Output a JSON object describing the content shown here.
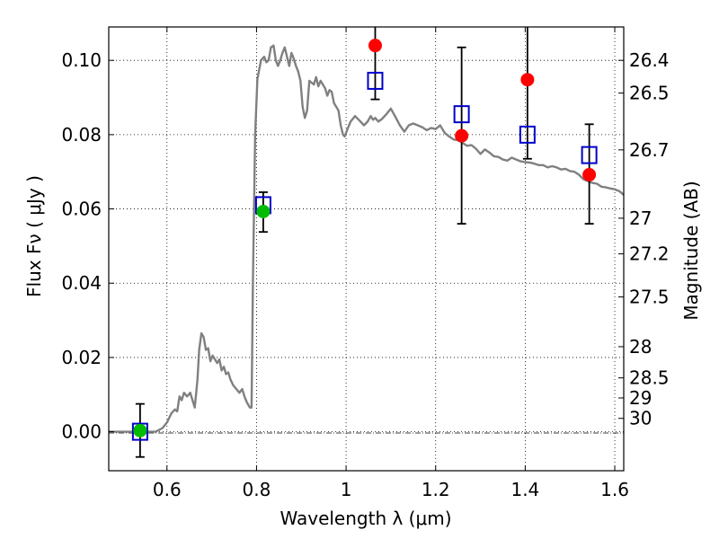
{
  "chart_data": {
    "type": "line",
    "xlabel": "Wavelength  λ (μm)",
    "ylabel": "Flux  Fν  ( μJy )",
    "y2label": "Magnitude (AB)",
    "xlim": [
      0.47,
      1.62
    ],
    "ylim": [
      -0.0105,
      0.109
    ],
    "grid": true,
    "x_ticks": [
      0.6,
      0.8,
      1.0,
      1.2,
      1.4,
      1.6
    ],
    "x_tick_labels": [
      "0.6",
      "0.8",
      "1",
      "1.2",
      "1.4",
      "1.6"
    ],
    "y_ticks": [
      0.0,
      0.02,
      0.04,
      0.06,
      0.08,
      0.1
    ],
    "y_tick_labels": [
      "0.00",
      "0.02",
      "0.04",
      "0.06",
      "0.08",
      "0.10"
    ],
    "mag_ticks": [
      {
        "label": "26.4",
        "flux": 0.1
      },
      {
        "label": "26.5",
        "flux": 0.0912
      },
      {
        "label": "26.7",
        "flux": 0.0759
      },
      {
        "label": "27",
        "flux": 0.0575
      },
      {
        "label": "27.2",
        "flux": 0.0479
      },
      {
        "label": "27.5",
        "flux": 0.0363
      },
      {
        "label": "28",
        "flux": 0.0229
      },
      {
        "label": "28.5",
        "flux": 0.0145
      },
      {
        "label": "29",
        "flux": 0.0091
      },
      {
        "label": "30",
        "flux": 0.0036
      }
    ],
    "series": [
      {
        "name": "model spectrum",
        "kind": "line",
        "color": "#808080",
        "points": [
          [
            0.47,
            0.0
          ],
          [
            0.575,
            0.0
          ],
          [
            0.59,
            0.001
          ],
          [
            0.6,
            0.0025
          ],
          [
            0.61,
            0.005
          ],
          [
            0.618,
            0.006
          ],
          [
            0.623,
            0.0055
          ],
          [
            0.628,
            0.0095
          ],
          [
            0.633,
            0.0085
          ],
          [
            0.638,
            0.0105
          ],
          [
            0.645,
            0.0095
          ],
          [
            0.652,
            0.0105
          ],
          [
            0.657,
            0.0085
          ],
          [
            0.662,
            0.0065
          ],
          [
            0.668,
            0.014
          ],
          [
            0.672,
            0.022
          ],
          [
            0.677,
            0.0265
          ],
          [
            0.682,
            0.0255
          ],
          [
            0.687,
            0.022
          ],
          [
            0.692,
            0.0225
          ],
          [
            0.697,
            0.019
          ],
          [
            0.702,
            0.0205
          ],
          [
            0.707,
            0.0195
          ],
          [
            0.712,
            0.0185
          ],
          [
            0.717,
            0.0195
          ],
          [
            0.722,
            0.0165
          ],
          [
            0.727,
            0.0175
          ],
          [
            0.732,
            0.0155
          ],
          [
            0.737,
            0.016
          ],
          [
            0.742,
            0.014
          ],
          [
            0.748,
            0.0125
          ],
          [
            0.755,
            0.0115
          ],
          [
            0.762,
            0.0105
          ],
          [
            0.768,
            0.0115
          ],
          [
            0.773,
            0.0095
          ],
          [
            0.778,
            0.008
          ],
          [
            0.785,
            0.0065
          ],
          [
            0.789,
            0.0065
          ],
          [
            0.792,
            0.04
          ],
          [
            0.797,
            0.08
          ],
          [
            0.802,
            0.095
          ],
          [
            0.81,
            0.1
          ],
          [
            0.817,
            0.101
          ],
          [
            0.822,
            0.0995
          ],
          [
            0.827,
            0.1
          ],
          [
            0.832,
            0.1035
          ],
          [
            0.838,
            0.104
          ],
          [
            0.843,
            0.1
          ],
          [
            0.848,
            0.0985
          ],
          [
            0.853,
            0.1
          ],
          [
            0.858,
            0.102
          ],
          [
            0.863,
            0.1035
          ],
          [
            0.868,
            0.101
          ],
          [
            0.873,
            0.0985
          ],
          [
            0.878,
            0.102
          ],
          [
            0.883,
            0.1005
          ],
          [
            0.888,
            0.0985
          ],
          [
            0.893,
            0.097
          ],
          [
            0.898,
            0.0945
          ],
          [
            0.903,
            0.0875
          ],
          [
            0.908,
            0.0845
          ],
          [
            0.913,
            0.0865
          ],
          [
            0.918,
            0.0945
          ],
          [
            0.923,
            0.094
          ],
          [
            0.928,
            0.0935
          ],
          [
            0.933,
            0.0955
          ],
          [
            0.938,
            0.093
          ],
          [
            0.943,
            0.0945
          ],
          [
            0.948,
            0.0935
          ],
          [
            0.953,
            0.0925
          ],
          [
            0.958,
            0.0905
          ],
          [
            0.963,
            0.092
          ],
          [
            0.968,
            0.0915
          ],
          [
            0.973,
            0.0885
          ],
          [
            0.978,
            0.0875
          ],
          [
            0.983,
            0.0865
          ],
          [
            0.988,
            0.0825
          ],
          [
            0.993,
            0.08
          ],
          [
            0.997,
            0.0795
          ],
          [
            1.003,
            0.0815
          ],
          [
            1.01,
            0.0835
          ],
          [
            1.02,
            0.085
          ],
          [
            1.03,
            0.0838
          ],
          [
            1.04,
            0.0825
          ],
          [
            1.048,
            0.0835
          ],
          [
            1.055,
            0.085
          ],
          [
            1.06,
            0.084
          ],
          [
            1.065,
            0.0845
          ],
          [
            1.072,
            0.0835
          ],
          [
            1.08,
            0.0842
          ],
          [
            1.09,
            0.0855
          ],
          [
            1.1,
            0.087
          ],
          [
            1.11,
            0.0848
          ],
          [
            1.12,
            0.0825
          ],
          [
            1.13,
            0.0808
          ],
          [
            1.14,
            0.0825
          ],
          [
            1.15,
            0.083
          ],
          [
            1.16,
            0.0825
          ],
          [
            1.17,
            0.082
          ],
          [
            1.18,
            0.0812
          ],
          [
            1.19,
            0.0818
          ],
          [
            1.2,
            0.0815
          ],
          [
            1.21,
            0.0825
          ],
          [
            1.22,
            0.0805
          ],
          [
            1.23,
            0.0795
          ],
          [
            1.24,
            0.0787
          ],
          [
            1.25,
            0.0785
          ],
          [
            1.26,
            0.0778
          ],
          [
            1.27,
            0.077
          ],
          [
            1.28,
            0.0772
          ],
          [
            1.29,
            0.0762
          ],
          [
            1.3,
            0.0748
          ],
          [
            1.31,
            0.076
          ],
          [
            1.32,
            0.0752
          ],
          [
            1.33,
            0.0742
          ],
          [
            1.34,
            0.074
          ],
          [
            1.35,
            0.0733
          ],
          [
            1.36,
            0.073
          ],
          [
            1.37,
            0.0738
          ],
          [
            1.38,
            0.0733
          ],
          [
            1.39,
            0.0728
          ],
          [
            1.4,
            0.0726
          ],
          [
            1.41,
            0.0725
          ],
          [
            1.42,
            0.0722
          ],
          [
            1.43,
            0.0718
          ],
          [
            1.44,
            0.0718
          ],
          [
            1.45,
            0.0712
          ],
          [
            1.46,
            0.0715
          ],
          [
            1.47,
            0.0712
          ],
          [
            1.48,
            0.0706
          ],
          [
            1.49,
            0.0708
          ],
          [
            1.5,
            0.0702
          ],
          [
            1.51,
            0.07
          ],
          [
            1.52,
            0.0692
          ],
          [
            1.53,
            0.068
          ],
          [
            1.54,
            0.0675
          ],
          [
            1.55,
            0.067
          ],
          [
            1.56,
            0.0668
          ],
          [
            1.57,
            0.066
          ],
          [
            1.58,
            0.0658
          ],
          [
            1.59,
            0.0655
          ],
          [
            1.6,
            0.0653
          ],
          [
            1.61,
            0.0648
          ],
          [
            1.62,
            0.0638
          ]
        ]
      },
      {
        "name": "green points",
        "kind": "scatter",
        "color": "#00bb00",
        "points": [
          [
            0.54,
            0.0003
          ],
          [
            0.815,
            0.0593
          ]
        ]
      },
      {
        "name": "red points",
        "kind": "scatter",
        "color": "#ff0000",
        "points": [
          [
            1.065,
            0.104
          ],
          [
            1.258,
            0.0797
          ],
          [
            1.405,
            0.0948
          ],
          [
            1.543,
            0.0692
          ]
        ]
      },
      {
        "name": "blue squares with error bars",
        "kind": "errorbar",
        "color": "#0000cc",
        "points": [
          {
            "x": 0.54,
            "y": 0.0,
            "lo": -0.0068,
            "hi": 0.0075
          },
          {
            "x": 0.815,
            "y": 0.061,
            "lo": 0.0538,
            "hi": 0.0645
          },
          {
            "x": 1.065,
            "y": 0.0945,
            "lo": 0.0895,
            "hi": 0.109
          },
          {
            "x": 1.258,
            "y": 0.0855,
            "lo": 0.056,
            "hi": 0.1035
          },
          {
            "x": 1.405,
            "y": 0.08,
            "lo": 0.0735,
            "hi": 0.109
          },
          {
            "x": 1.543,
            "y": 0.0745,
            "lo": 0.056,
            "hi": 0.0828
          }
        ]
      }
    ]
  }
}
